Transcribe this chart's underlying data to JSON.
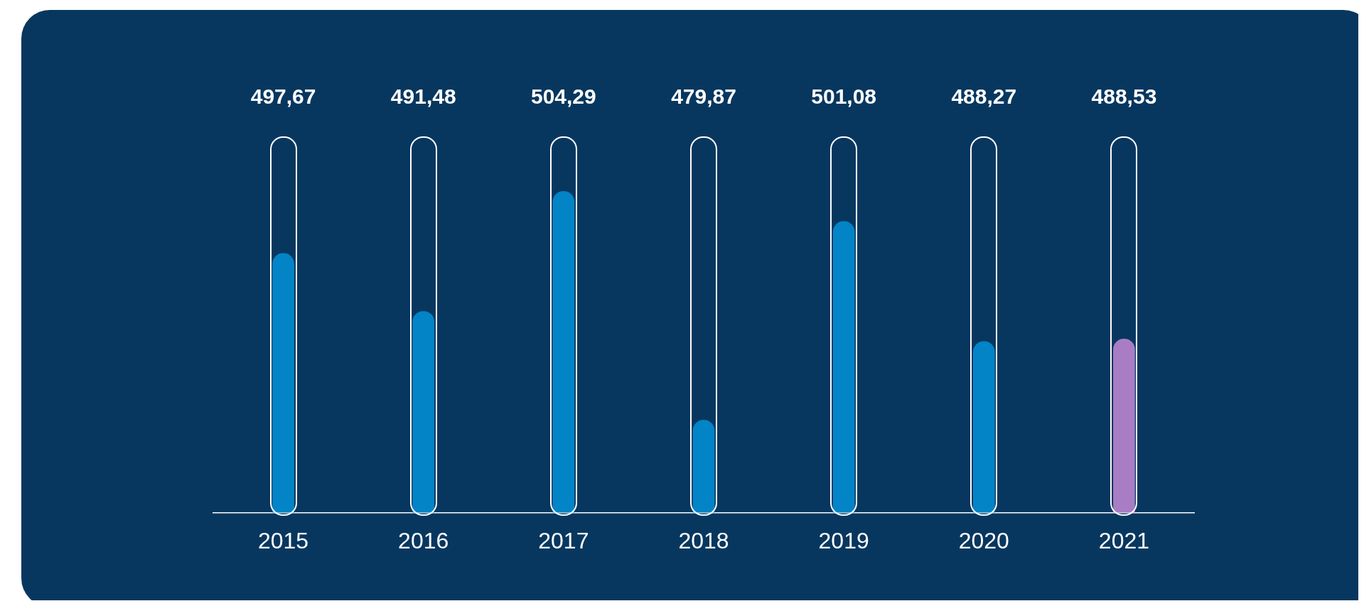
{
  "chart_data": {
    "type": "bar",
    "categories": [
      "2015",
      "2016",
      "2017",
      "2018",
      "2019",
      "2020",
      "2021"
    ],
    "values": [
      497.67,
      491.48,
      504.29,
      479.87,
      501.08,
      488.27,
      488.53
    ],
    "value_labels": [
      "497,67",
      "491,48",
      "504,29",
      "479,87",
      "501,08",
      "488,27",
      "488,53"
    ],
    "colors": [
      "#0284c7",
      "#0284c7",
      "#0284c7",
      "#0284c7",
      "#0284c7",
      "#0284c7",
      "#a87dc4"
    ],
    "tick_labels": "x",
    "grid": false,
    "legend": false
  }
}
